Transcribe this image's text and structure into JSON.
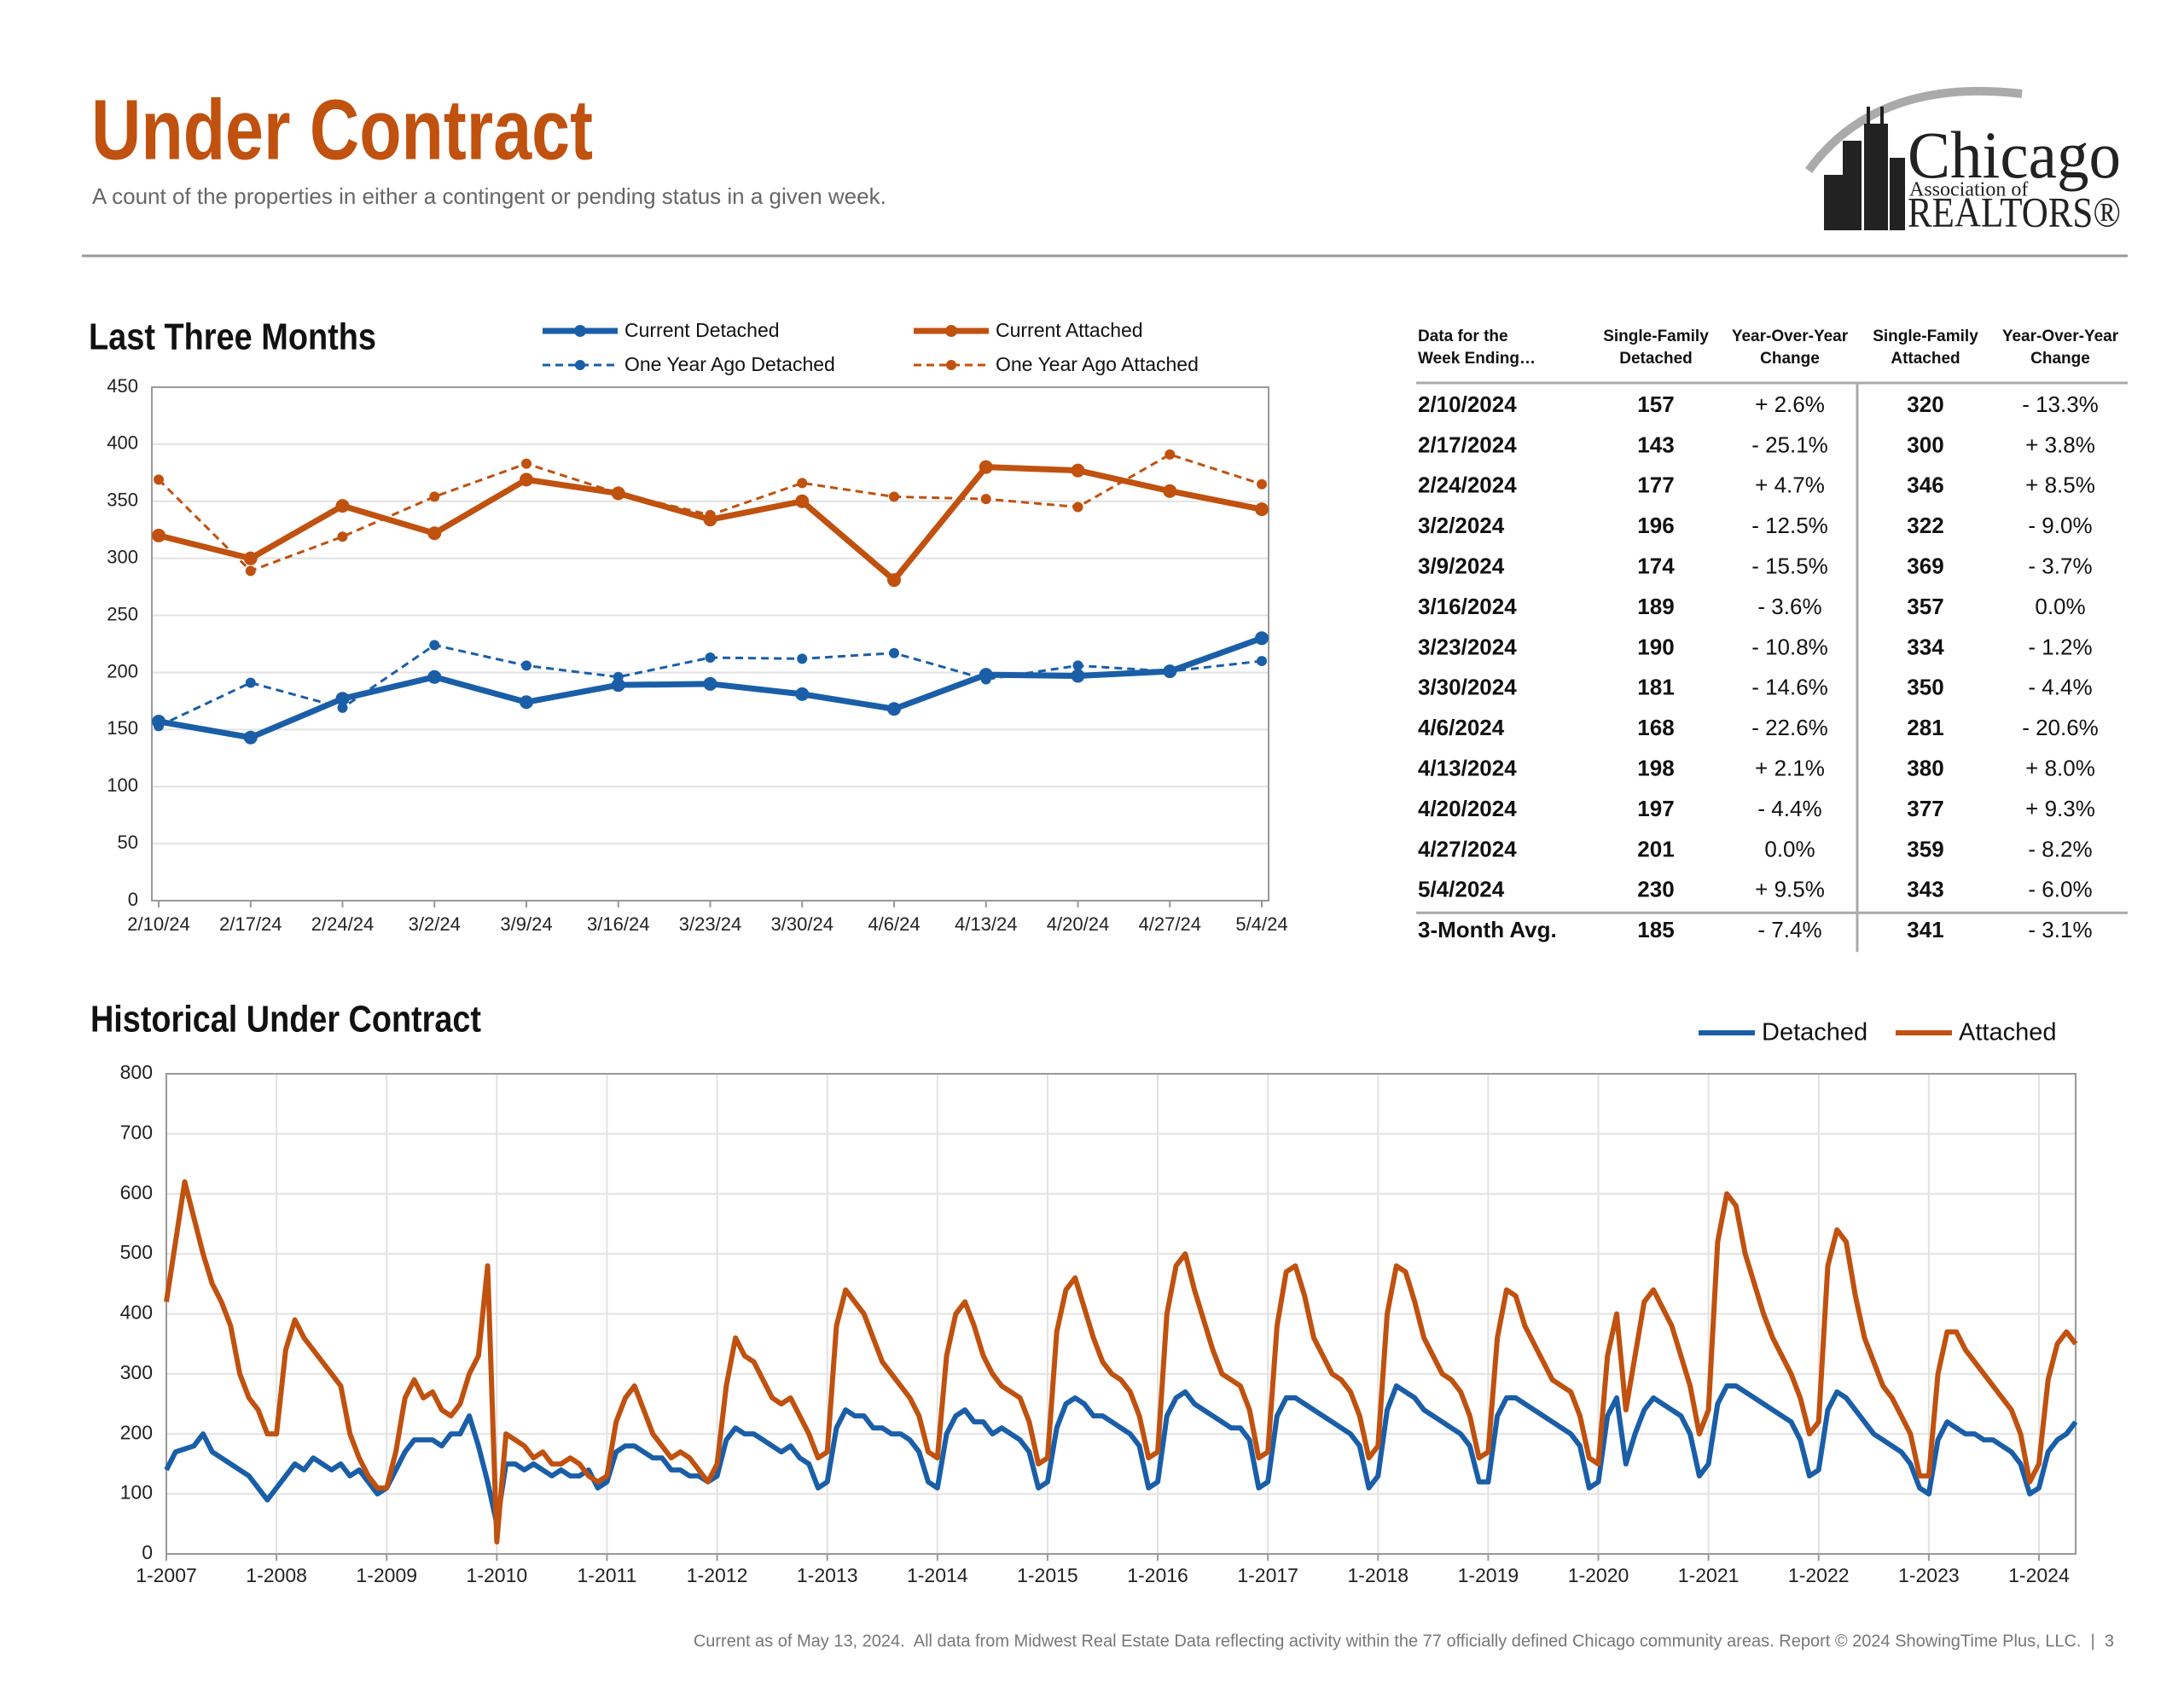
{
  "header": {
    "title": "Under Contract",
    "subtitle": "A count of the properties in either a contingent or pending status in a given week."
  },
  "logo": {
    "name": "Chicago",
    "line2": "Association of",
    "line3": "REALTORS®"
  },
  "chart_data": [
    {
      "type": "line",
      "title": "Last Three Months",
      "categories": [
        "2/10/24",
        "2/17/24",
        "2/24/24",
        "3/2/24",
        "3/9/24",
        "3/16/24",
        "3/23/24",
        "3/30/24",
        "4/6/24",
        "4/13/24",
        "4/20/24",
        "4/27/24",
        "5/4/24"
      ],
      "series": [
        {
          "name": "Current Detached",
          "color": "#1a5ea8",
          "line_style": "solid",
          "markers": true,
          "values": [
            157,
            143,
            177,
            196,
            174,
            189,
            190,
            181,
            168,
            198,
            197,
            201,
            230
          ]
        },
        {
          "name": "One Year Ago Detached",
          "color": "#1a5ea8",
          "line_style": "dashed",
          "markers": true,
          "values": [
            153,
            191,
            169,
            224,
            206,
            196,
            213,
            212,
            217,
            194,
            206,
            201,
            210
          ]
        },
        {
          "name": "Current Attached",
          "color": "#c0510f",
          "line_style": "solid",
          "markers": true,
          "values": [
            320,
            300,
            346,
            322,
            369,
            357,
            334,
            350,
            281,
            380,
            377,
            359,
            343
          ]
        },
        {
          "name": "One Year Ago Attached",
          "color": "#c0510f",
          "line_style": "dashed",
          "markers": true,
          "values": [
            369,
            289,
            319,
            354,
            383,
            357,
            338,
            366,
            354,
            352,
            345,
            391,
            365
          ]
        }
      ],
      "ylim": [
        0,
        450
      ],
      "yticks": [
        0,
        50,
        100,
        150,
        200,
        250,
        300,
        350,
        400,
        450
      ],
      "grid": true,
      "legend": "top"
    },
    {
      "type": "line",
      "title": "Historical Under Contract",
      "categories": [
        "1-2007",
        null,
        null,
        null,
        null,
        null,
        null,
        null,
        null,
        null,
        null,
        null,
        "1-2008",
        null,
        null,
        null,
        null,
        null,
        null,
        null,
        null,
        null,
        null,
        null,
        "1-2009",
        null,
        null,
        null,
        null,
        null,
        null,
        null,
        null,
        null,
        null,
        null,
        "1-2010",
        null,
        null,
        null,
        null,
        null,
        null,
        null,
        null,
        null,
        null,
        null,
        "1-2011",
        null,
        null,
        null,
        null,
        null,
        null,
        null,
        null,
        null,
        null,
        null,
        "1-2012",
        null,
        null,
        null,
        null,
        null,
        null,
        null,
        null,
        null,
        null,
        null,
        "1-2013",
        null,
        null,
        null,
        null,
        null,
        null,
        null,
        null,
        null,
        null,
        null,
        "1-2014",
        null,
        null,
        null,
        null,
        null,
        null,
        null,
        null,
        null,
        null,
        null,
        "1-2015",
        null,
        null,
        null,
        null,
        null,
        null,
        null,
        null,
        null,
        null,
        null,
        "1-2016",
        null,
        null,
        null,
        null,
        null,
        null,
        null,
        null,
        null,
        null,
        null,
        "1-2017",
        null,
        null,
        null,
        null,
        null,
        null,
        null,
        null,
        null,
        null,
        null,
        "1-2018",
        null,
        null,
        null,
        null,
        null,
        null,
        null,
        null,
        null,
        null,
        null,
        "1-2019",
        null,
        null,
        null,
        null,
        null,
        null,
        null,
        null,
        null,
        null,
        null,
        "1-2020",
        null,
        null,
        null,
        null,
        null,
        null,
        null,
        null,
        null,
        null,
        null,
        "1-2021",
        null,
        null,
        null,
        null,
        null,
        null,
        null,
        null,
        null,
        null,
        null,
        "1-2022",
        null,
        null,
        null,
        null,
        null,
        null,
        null,
        null,
        null,
        null,
        null,
        "1-2023",
        null,
        null,
        null,
        null,
        null,
        null,
        null,
        null,
        null,
        null,
        null,
        "1-2024",
        null,
        null,
        null,
        null
      ],
      "series": [
        {
          "name": "Detached",
          "color": "#1a5ea8",
          "line_style": "solid",
          "markers": false,
          "values": [
            140,
            170,
            175,
            180,
            200,
            170,
            160,
            150,
            140,
            130,
            110,
            90,
            110,
            130,
            150,
            140,
            160,
            150,
            140,
            150,
            130,
            140,
            120,
            100,
            110,
            140,
            170,
            190,
            190,
            190,
            180,
            200,
            200,
            230,
            180,
            120,
            50,
            150,
            150,
            140,
            150,
            140,
            130,
            140,
            130,
            130,
            140,
            110,
            120,
            170,
            180,
            180,
            170,
            160,
            160,
            140,
            140,
            130,
            130,
            120,
            130,
            190,
            210,
            200,
            200,
            190,
            180,
            170,
            180,
            160,
            150,
            110,
            120,
            210,
            240,
            230,
            230,
            210,
            210,
            200,
            200,
            190,
            170,
            120,
            110,
            200,
            230,
            240,
            220,
            220,
            200,
            210,
            200,
            190,
            170,
            110,
            120,
            210,
            250,
            260,
            250,
            230,
            230,
            220,
            210,
            200,
            180,
            110,
            120,
            230,
            260,
            270,
            250,
            240,
            230,
            220,
            210,
            210,
            190,
            110,
            120,
            230,
            260,
            260,
            250,
            240,
            230,
            220,
            210,
            200,
            180,
            110,
            130,
            240,
            280,
            270,
            260,
            240,
            230,
            220,
            210,
            200,
            180,
            120,
            120,
            230,
            260,
            260,
            250,
            240,
            230,
            220,
            210,
            200,
            180,
            110,
            120,
            230,
            260,
            150,
            200,
            240,
            260,
            250,
            240,
            230,
            200,
            130,
            150,
            250,
            280,
            280,
            270,
            260,
            250,
            240,
            230,
            220,
            190,
            130,
            140,
            240,
            270,
            260,
            240,
            220,
            200,
            190,
            180,
            170,
            150,
            110,
            100,
            190,
            220,
            210,
            200,
            200,
            190,
            190,
            180,
            170,
            150,
            100,
            110,
            170,
            190,
            200,
            220
          ]
        },
        {
          "name": "Attached",
          "color": "#c0510f",
          "line_style": "solid",
          "markers": false,
          "values": [
            420,
            520,
            620,
            560,
            500,
            450,
            420,
            380,
            300,
            260,
            240,
            200,
            200,
            340,
            390,
            360,
            340,
            320,
            300,
            280,
            200,
            160,
            130,
            110,
            110,
            170,
            260,
            290,
            260,
            270,
            240,
            230,
            250,
            300,
            330,
            480,
            20,
            200,
            190,
            180,
            160,
            170,
            150,
            150,
            160,
            150,
            130,
            120,
            130,
            220,
            260,
            280,
            240,
            200,
            180,
            160,
            170,
            160,
            140,
            120,
            150,
            280,
            360,
            330,
            320,
            290,
            260,
            250,
            260,
            230,
            200,
            160,
            170,
            380,
            440,
            420,
            400,
            360,
            320,
            300,
            280,
            260,
            230,
            170,
            160,
            330,
            400,
            420,
            380,
            330,
            300,
            280,
            270,
            260,
            220,
            150,
            160,
            370,
            440,
            460,
            410,
            360,
            320,
            300,
            290,
            270,
            230,
            160,
            170,
            400,
            480,
            500,
            440,
            390,
            340,
            300,
            290,
            280,
            240,
            160,
            170,
            380,
            470,
            480,
            430,
            360,
            330,
            300,
            290,
            270,
            230,
            160,
            180,
            400,
            480,
            470,
            420,
            360,
            330,
            300,
            290,
            270,
            230,
            160,
            170,
            360,
            440,
            430,
            380,
            350,
            320,
            290,
            280,
            270,
            230,
            160,
            150,
            330,
            400,
            240,
            330,
            420,
            440,
            410,
            380,
            330,
            280,
            200,
            240,
            520,
            600,
            580,
            500,
            450,
            400,
            360,
            330,
            300,
            260,
            200,
            220,
            480,
            540,
            520,
            430,
            360,
            320,
            280,
            260,
            230,
            200,
            130,
            130,
            300,
            370,
            370,
            340,
            320,
            300,
            280,
            260,
            240,
            200,
            120,
            150,
            290,
            350,
            370,
            350
          ]
        }
      ],
      "ylim": [
        0,
        800
      ],
      "yticks": [
        0,
        100,
        200,
        300,
        400,
        500,
        600,
        700,
        800
      ],
      "grid": true,
      "xgrid": true,
      "legend": "top-right"
    }
  ],
  "table": {
    "columns": [
      [
        "Data for the",
        "Week Ending…"
      ],
      [
        "Single-Family",
        "Detached"
      ],
      [
        "Year-Over-Year",
        "Change"
      ],
      [
        "Single-Family",
        "Attached"
      ],
      [
        "Year-Over-Year",
        "Change"
      ]
    ],
    "rows": [
      [
        "2/10/2024",
        157,
        "+ 2.6%",
        320,
        "- 13.3%"
      ],
      [
        "2/17/2024",
        143,
        "- 25.1%",
        300,
        "+ 3.8%"
      ],
      [
        "2/24/2024",
        177,
        "+ 4.7%",
        346,
        "+ 8.5%"
      ],
      [
        "3/2/2024",
        196,
        "- 12.5%",
        322,
        "- 9.0%"
      ],
      [
        "3/9/2024",
        174,
        "- 15.5%",
        369,
        "- 3.7%"
      ],
      [
        "3/16/2024",
        189,
        "- 3.6%",
        357,
        "0.0%"
      ],
      [
        "3/23/2024",
        190,
        "- 10.8%",
        334,
        "- 1.2%"
      ],
      [
        "3/30/2024",
        181,
        "- 14.6%",
        350,
        "- 4.4%"
      ],
      [
        "4/6/2024",
        168,
        "- 22.6%",
        281,
        "- 20.6%"
      ],
      [
        "4/13/2024",
        198,
        "+ 2.1%",
        380,
        "+ 8.0%"
      ],
      [
        "4/20/2024",
        197,
        "- 4.4%",
        377,
        "+ 9.3%"
      ],
      [
        "4/27/2024",
        201,
        "0.0%",
        359,
        "- 8.2%"
      ],
      [
        "5/4/2024",
        230,
        "+ 9.5%",
        343,
        "- 6.0%"
      ]
    ],
    "average": [
      "3-Month Avg.",
      185,
      "- 7.4%",
      341,
      "- 3.1%"
    ]
  },
  "footer": "Current as of May 13, 2024.  All data from Midwest Real Estate Data reflecting activity within the 77 officially defined Chicago community areas. Report © 2024 ShowingTime Plus, LLC.  |  3"
}
